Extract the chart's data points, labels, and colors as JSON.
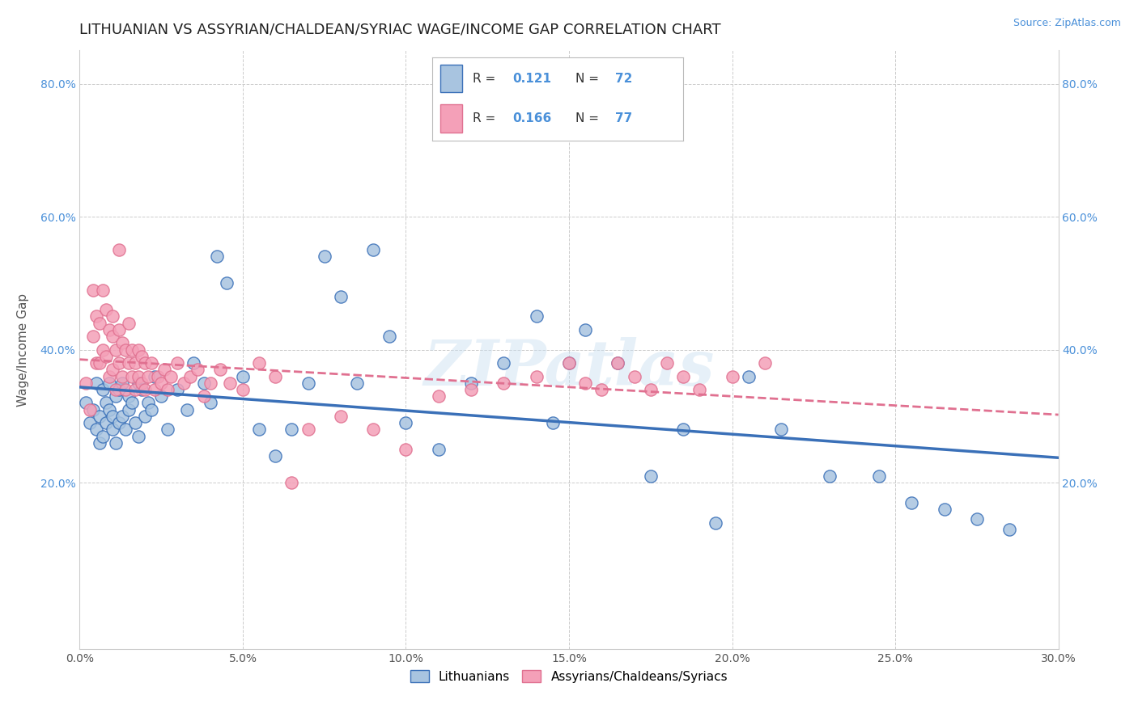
{
  "title": "LITHUANIAN VS ASSYRIAN/CHALDEAN/SYRIAC WAGE/INCOME GAP CORRELATION CHART",
  "source_text": "Source: ZipAtlas.com",
  "ylabel": "Wage/Income Gap",
  "xmin": 0.0,
  "xmax": 0.3,
  "ymin": -0.05,
  "ymax": 0.85,
  "xtick_labels": [
    "0.0%",
    "5.0%",
    "10.0%",
    "15.0%",
    "20.0%",
    "25.0%",
    "30.0%"
  ],
  "xtick_vals": [
    0.0,
    0.05,
    0.1,
    0.15,
    0.2,
    0.25,
    0.3
  ],
  "ytick_labels": [
    "20.0%",
    "40.0%",
    "60.0%",
    "80.0%"
  ],
  "ytick_vals": [
    0.2,
    0.4,
    0.6,
    0.8
  ],
  "grid_color": "#cccccc",
  "bg_color": "#ffffff",
  "watermark_text": "ZIPatlas",
  "scatter1_color": "#a8c4e0",
  "scatter2_color": "#f4a0b8",
  "line1_color": "#3a70b8",
  "line2_color": "#e07090",
  "R1": 0.121,
  "N1": 72,
  "R2": 0.166,
  "N2": 77,
  "legend_labels": [
    "Lithuanians",
    "Assyrians/Chaldeans/Syriacs"
  ],
  "title_fontsize": 13,
  "axis_label_fontsize": 11,
  "tick_fontsize": 10,
  "scatter1_data_x": [
    0.002,
    0.003,
    0.004,
    0.005,
    0.005,
    0.006,
    0.006,
    0.007,
    0.007,
    0.008,
    0.008,
    0.009,
    0.009,
    0.01,
    0.01,
    0.011,
    0.011,
    0.012,
    0.012,
    0.013,
    0.013,
    0.014,
    0.015,
    0.015,
    0.016,
    0.017,
    0.018,
    0.018,
    0.019,
    0.02,
    0.021,
    0.022,
    0.023,
    0.025,
    0.027,
    0.03,
    0.033,
    0.035,
    0.038,
    0.04,
    0.042,
    0.045,
    0.05,
    0.055,
    0.06,
    0.065,
    0.07,
    0.075,
    0.08,
    0.085,
    0.09,
    0.095,
    0.1,
    0.11,
    0.12,
    0.13,
    0.14,
    0.145,
    0.15,
    0.155,
    0.165,
    0.175,
    0.185,
    0.195,
    0.205,
    0.215,
    0.23,
    0.245,
    0.255,
    0.265,
    0.275,
    0.285
  ],
  "scatter1_data_y": [
    0.32,
    0.29,
    0.31,
    0.28,
    0.35,
    0.3,
    0.26,
    0.34,
    0.27,
    0.32,
    0.29,
    0.31,
    0.35,
    0.3,
    0.28,
    0.33,
    0.26,
    0.34,
    0.29,
    0.3,
    0.35,
    0.28,
    0.33,
    0.31,
    0.32,
    0.29,
    0.35,
    0.27,
    0.34,
    0.3,
    0.32,
    0.31,
    0.36,
    0.33,
    0.28,
    0.34,
    0.31,
    0.38,
    0.35,
    0.32,
    0.54,
    0.5,
    0.36,
    0.28,
    0.24,
    0.28,
    0.35,
    0.54,
    0.48,
    0.35,
    0.55,
    0.42,
    0.29,
    0.25,
    0.35,
    0.38,
    0.45,
    0.29,
    0.38,
    0.43,
    0.38,
    0.21,
    0.28,
    0.14,
    0.36,
    0.28,
    0.21,
    0.21,
    0.17,
    0.16,
    0.145,
    0.13
  ],
  "scatter2_data_x": [
    0.002,
    0.003,
    0.004,
    0.004,
    0.005,
    0.005,
    0.006,
    0.006,
    0.007,
    0.007,
    0.008,
    0.008,
    0.009,
    0.009,
    0.01,
    0.01,
    0.01,
    0.011,
    0.011,
    0.012,
    0.012,
    0.012,
    0.013,
    0.013,
    0.014,
    0.014,
    0.015,
    0.015,
    0.016,
    0.016,
    0.017,
    0.017,
    0.018,
    0.018,
    0.019,
    0.019,
    0.02,
    0.02,
    0.021,
    0.022,
    0.023,
    0.024,
    0.025,
    0.026,
    0.027,
    0.028,
    0.03,
    0.032,
    0.034,
    0.036,
    0.038,
    0.04,
    0.043,
    0.046,
    0.05,
    0.055,
    0.06,
    0.065,
    0.07,
    0.08,
    0.09,
    0.1,
    0.11,
    0.12,
    0.13,
    0.14,
    0.15,
    0.155,
    0.16,
    0.165,
    0.17,
    0.175,
    0.18,
    0.185,
    0.19,
    0.2,
    0.21
  ],
  "scatter2_data_y": [
    0.35,
    0.31,
    0.49,
    0.42,
    0.45,
    0.38,
    0.44,
    0.38,
    0.49,
    0.4,
    0.46,
    0.39,
    0.43,
    0.36,
    0.42,
    0.37,
    0.45,
    0.4,
    0.34,
    0.43,
    0.38,
    0.55,
    0.41,
    0.36,
    0.4,
    0.34,
    0.38,
    0.44,
    0.36,
    0.4,
    0.38,
    0.34,
    0.36,
    0.4,
    0.35,
    0.39,
    0.34,
    0.38,
    0.36,
    0.38,
    0.34,
    0.36,
    0.35,
    0.37,
    0.34,
    0.36,
    0.38,
    0.35,
    0.36,
    0.37,
    0.33,
    0.35,
    0.37,
    0.35,
    0.34,
    0.38,
    0.36,
    0.2,
    0.28,
    0.3,
    0.28,
    0.25,
    0.33,
    0.34,
    0.35,
    0.36,
    0.38,
    0.35,
    0.34,
    0.38,
    0.36,
    0.34,
    0.38,
    0.36,
    0.34,
    0.36,
    0.38
  ]
}
